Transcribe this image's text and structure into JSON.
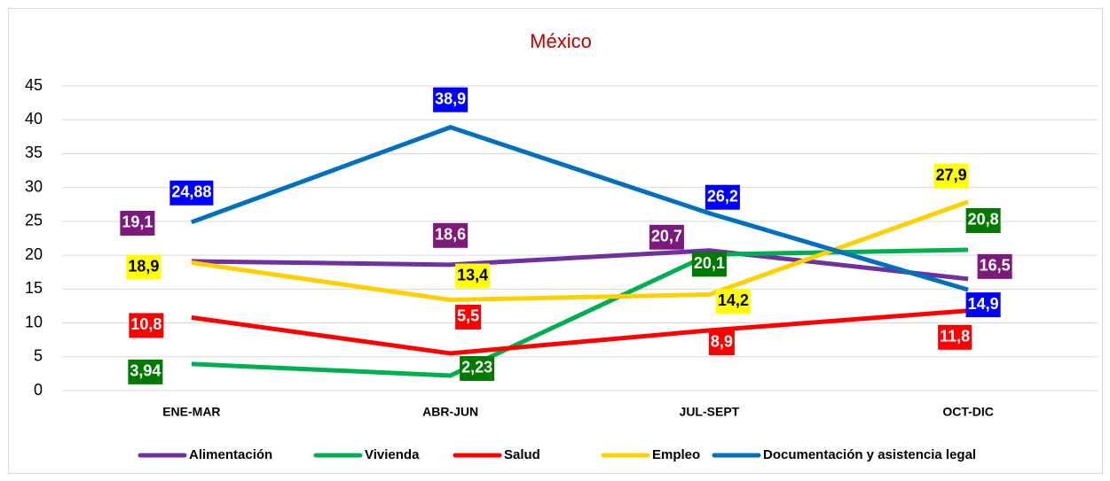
{
  "chart_data": {
    "type": "line",
    "title": "México",
    "title_color": "#c00000",
    "categories": [
      "ENE-MAR",
      "ABR-JUN",
      "JUL-SEPT",
      "OCT-DIC"
    ],
    "ylim": [
      0,
      45
    ],
    "yticks": [
      0,
      5,
      10,
      15,
      20,
      25,
      30,
      35,
      40,
      45
    ],
    "grid": true,
    "legend": "bottom",
    "series": [
      {
        "name": "Alimentación",
        "color": "#7030a0",
        "label_color": "#7b1a7b",
        "label_text_color": "#ffffff",
        "values": [
          19.1,
          18.6,
          20.7,
          16.5
        ],
        "value_labels": [
          "19,1",
          "18,6",
          "20,7",
          "16,5"
        ]
      },
      {
        "name": "Vivienda",
        "color": "#00b050",
        "label_color": "#007a00",
        "label_text_color": "#ffffff",
        "values": [
          3.94,
          2.23,
          20.1,
          20.8
        ],
        "value_labels": [
          "3,94",
          "2,23",
          "20,1",
          "20,8"
        ]
      },
      {
        "name": "Salud",
        "color": "#ff0000",
        "label_color": "#ff0000",
        "label_text_color": "#ffffff",
        "values": [
          10.8,
          5.5,
          8.9,
          11.8
        ],
        "value_labels": [
          "10,8",
          "5,5",
          "8,9",
          "11,8"
        ]
      },
      {
        "name": "Empleo",
        "color": "#ffd000",
        "label_color": "#ffff00",
        "label_text_color": "#000000",
        "values": [
          18.9,
          13.4,
          14.2,
          27.9
        ],
        "value_labels": [
          "18,9",
          "13,4",
          "14,2",
          "27,9"
        ]
      },
      {
        "name": "Documentación y asistencia legal",
        "color": "#0070c0",
        "label_color": "#0000ff",
        "label_text_color": "#ffffff",
        "values": [
          24.88,
          38.9,
          26.2,
          14.9
        ],
        "value_labels": [
          "24,88",
          "38,9",
          "26,2",
          "14,9"
        ]
      }
    ]
  }
}
